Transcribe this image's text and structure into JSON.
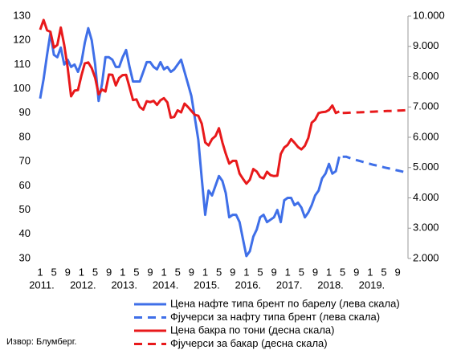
{
  "chart_data": {
    "type": "line",
    "source": "Извор: Блумберг.",
    "x": [
      "2011-01",
      "2011-02",
      "2011-03",
      "2011-04",
      "2011-05",
      "2011-06",
      "2011-07",
      "2011-08",
      "2011-09",
      "2011-10",
      "2011-11",
      "2011-12",
      "2012-01",
      "2012-02",
      "2012-03",
      "2012-04",
      "2012-05",
      "2012-06",
      "2012-07",
      "2012-08",
      "2012-09",
      "2012-10",
      "2012-11",
      "2012-12",
      "2013-01",
      "2013-02",
      "2013-03",
      "2013-04",
      "2013-05",
      "2013-06",
      "2013-07",
      "2013-08",
      "2013-09",
      "2013-10",
      "2013-11",
      "2013-12",
      "2014-01",
      "2014-02",
      "2014-03",
      "2014-04",
      "2014-05",
      "2014-06",
      "2014-07",
      "2014-08",
      "2014-09",
      "2014-10",
      "2014-11",
      "2014-12",
      "2015-01",
      "2015-02",
      "2015-03",
      "2015-04",
      "2015-05",
      "2015-06",
      "2015-07",
      "2015-08",
      "2015-09",
      "2015-10",
      "2015-11",
      "2015-12",
      "2016-01",
      "2016-02",
      "2016-03",
      "2016-04",
      "2016-05",
      "2016-06",
      "2016-07",
      "2016-08",
      "2016-09",
      "2016-10",
      "2016-11",
      "2016-12",
      "2017-01",
      "2017-02",
      "2017-03",
      "2017-04",
      "2017-05",
      "2017-06",
      "2017-07",
      "2017-08",
      "2017-09",
      "2017-10",
      "2017-11",
      "2017-12",
      "2018-01",
      "2018-02",
      "2018-03",
      "2018-04",
      "2018-05",
      "2018-06",
      "2018-07",
      "2018-08",
      "2018-09",
      "2018-10",
      "2018-11",
      "2018-12",
      "2019-01",
      "2019-02",
      "2019-03",
      "2019-04",
      "2019-05",
      "2019-06",
      "2019-07",
      "2019-08",
      "2019-09",
      "2019-10",
      "2019-11",
      "2019-12"
    ],
    "xlim": [
      "2011-01",
      "2019-12"
    ],
    "xticks": [
      {
        "value": "2011-01",
        "label": "1"
      },
      {
        "value": "2011-05",
        "label": "5"
      },
      {
        "value": "2011-09",
        "label": "9"
      },
      {
        "value": "2012-01",
        "label": "1"
      },
      {
        "value": "2012-05",
        "label": "5"
      },
      {
        "value": "2012-09",
        "label": "9"
      },
      {
        "value": "2013-01",
        "label": "1"
      },
      {
        "value": "2013-05",
        "label": "5"
      },
      {
        "value": "2013-09",
        "label": "9"
      },
      {
        "value": "2014-01",
        "label": "1"
      },
      {
        "value": "2014-05",
        "label": "5"
      },
      {
        "value": "2014-09",
        "label": "9"
      },
      {
        "value": "2015-01",
        "label": "1"
      },
      {
        "value": "2015-05",
        "label": "5"
      },
      {
        "value": "2015-09",
        "label": "9"
      },
      {
        "value": "2016-01",
        "label": "1"
      },
      {
        "value": "2016-05",
        "label": "5"
      },
      {
        "value": "2016-09",
        "label": "9"
      },
      {
        "value": "2017-01",
        "label": "1"
      },
      {
        "value": "2017-05",
        "label": "5"
      },
      {
        "value": "2017-09",
        "label": "9"
      },
      {
        "value": "2018-01",
        "label": "1"
      },
      {
        "value": "2018-05",
        "label": "5"
      },
      {
        "value": "2018-09",
        "label": "9"
      },
      {
        "value": "2019-01",
        "label": "1"
      },
      {
        "value": "2019-05",
        "label": "5"
      },
      {
        "value": "2019-09",
        "label": "9"
      }
    ],
    "x_group_labels": [
      {
        "value": "2011-01",
        "label": "2011."
      },
      {
        "value": "2012-01",
        "label": "2012."
      },
      {
        "value": "2013-01",
        "label": "2013."
      },
      {
        "value": "2014-01",
        "label": "2014."
      },
      {
        "value": "2015-01",
        "label": "2015."
      },
      {
        "value": "2016-01",
        "label": "2016."
      },
      {
        "value": "2017-01",
        "label": "2017."
      },
      {
        "value": "2018-01",
        "label": "2018."
      },
      {
        "value": "2019-01",
        "label": "2019."
      }
    ],
    "ylim": [
      30,
      130
    ],
    "yticks": [
      30,
      40,
      50,
      60,
      70,
      80,
      90,
      100,
      110,
      120,
      130
    ],
    "y2lim": [
      2000,
      10000
    ],
    "y2ticks": [
      {
        "value": 2000,
        "label": "2.000"
      },
      {
        "value": 3000,
        "label": "3.000"
      },
      {
        "value": 4000,
        "label": "4.000"
      },
      {
        "value": 5000,
        "label": "5.000"
      },
      {
        "value": 6000,
        "label": "6.000"
      },
      {
        "value": 7000,
        "label": "7.000"
      },
      {
        "value": 8000,
        "label": "8.000"
      },
      {
        "value": 9000,
        "label": "9.000"
      },
      {
        "value": 10000,
        "label": "10.000"
      }
    ],
    "series": [
      {
        "name": "Цена нафте типа брент по барелу (лева скала)",
        "color": "#3f6fe8",
        "line_style": "solid",
        "values": [
          96,
          104,
          114,
          123,
          114,
          113,
          117,
          110,
          112,
          109,
          110,
          107,
          111,
          119,
          125,
          120,
          110,
          95,
          102,
          113,
          113,
          112,
          109,
          109,
          113,
          116,
          109,
          103,
          103,
          103,
          107,
          111,
          111,
          109,
          108,
          111,
          108,
          109,
          107,
          108,
          110,
          112,
          107,
          102,
          97,
          88,
          79,
          63,
          48,
          58,
          56,
          60,
          64,
          62,
          57,
          47,
          48,
          48,
          45,
          38,
          31,
          33,
          39,
          42,
          47,
          48,
          45,
          46,
          47,
          50,
          45,
          54,
          55,
          55,
          52,
          53,
          51,
          47,
          49,
          52,
          56,
          58,
          63,
          65,
          69,
          65,
          66,
          72,
          null,
          null,
          null,
          null,
          null,
          null,
          null,
          null,
          null,
          null,
          null,
          null,
          null,
          null,
          null,
          null,
          null,
          null,
          null,
          null
        ]
      },
      {
        "name": "Фјучерси за нафту типа брент (лева скала)",
        "color": "#3f6fe8",
        "line_style": "dashed",
        "values": [
          null,
          null,
          null,
          null,
          null,
          null,
          null,
          null,
          null,
          null,
          null,
          null,
          null,
          null,
          null,
          null,
          null,
          null,
          null,
          null,
          null,
          null,
          null,
          null,
          null,
          null,
          null,
          null,
          null,
          null,
          null,
          null,
          null,
          null,
          null,
          null,
          null,
          null,
          null,
          null,
          null,
          null,
          null,
          null,
          null,
          null,
          null,
          null,
          null,
          null,
          null,
          null,
          null,
          null,
          null,
          null,
          null,
          null,
          null,
          null,
          null,
          null,
          null,
          null,
          null,
          null,
          null,
          null,
          null,
          null,
          null,
          null,
          null,
          null,
          null,
          null,
          null,
          null,
          null,
          null,
          null,
          null,
          null,
          null,
          null,
          null,
          null,
          null,
          72,
          72,
          71.5,
          71,
          70.6,
          70.2,
          69.8,
          69.4,
          69,
          68.6,
          68.3,
          68,
          67.6,
          67.3,
          67,
          66.6,
          66.3,
          66,
          65.6,
          65.3
        ]
      },
      {
        "name": "Цена бакра по тони (десна скала)",
        "color": "#e8191b",
        "line_style": "solid",
        "axis": "y2",
        "values": [
          9550,
          9870,
          9530,
          9480,
          8960,
          9050,
          9620,
          9040,
          8310,
          7350,
          7540,
          7560,
          8040,
          8440,
          8470,
          8280,
          7960,
          7420,
          7580,
          7510,
          8070,
          8060,
          7710,
          7960,
          8050,
          8060,
          7650,
          7230,
          7250,
          7000,
          6910,
          7190,
          7160,
          7200,
          7070,
          7220,
          7290,
          7150,
          6650,
          6670,
          6890,
          6820,
          7110,
          7000,
          6870,
          6740,
          6710,
          6450,
          5830,
          5730,
          5940,
          6040,
          6300,
          5830,
          5460,
          5130,
          5220,
          5220,
          4800,
          4630,
          4470,
          4600,
          4950,
          4870,
          4690,
          4640,
          4860,
          4750,
          4720,
          4730,
          5450,
          5660,
          5750,
          5940,
          5820,
          5680,
          5600,
          5720,
          5980,
          6480,
          6580,
          6800,
          6830,
          6840,
          6900,
          7050,
          6800,
          6850,
          null,
          null,
          null,
          null,
          null,
          null,
          null,
          null,
          null,
          null,
          null,
          null,
          null,
          null,
          null,
          null,
          null,
          null,
          null,
          null
        ]
      },
      {
        "name": "Фјучерси за бакар (десна скала)",
        "color": "#e8191b",
        "line_style": "dashed",
        "axis": "y2",
        "values": [
          null,
          null,
          null,
          null,
          null,
          null,
          null,
          null,
          null,
          null,
          null,
          null,
          null,
          null,
          null,
          null,
          null,
          null,
          null,
          null,
          null,
          null,
          null,
          null,
          null,
          null,
          null,
          null,
          null,
          null,
          null,
          null,
          null,
          null,
          null,
          null,
          null,
          null,
          null,
          null,
          null,
          null,
          null,
          null,
          null,
          null,
          null,
          null,
          null,
          null,
          null,
          null,
          null,
          null,
          null,
          null,
          null,
          null,
          null,
          null,
          null,
          null,
          null,
          null,
          null,
          null,
          null,
          null,
          null,
          null,
          null,
          null,
          null,
          null,
          null,
          null,
          null,
          null,
          null,
          null,
          null,
          null,
          null,
          null,
          null,
          null,
          null,
          null,
          6800,
          6805,
          6810,
          6815,
          6820,
          6825,
          6830,
          6835,
          6840,
          6845,
          6850,
          6855,
          6860,
          6865,
          6870,
          6875,
          6880,
          6885,
          6890,
          6900
        ]
      }
    ]
  }
}
